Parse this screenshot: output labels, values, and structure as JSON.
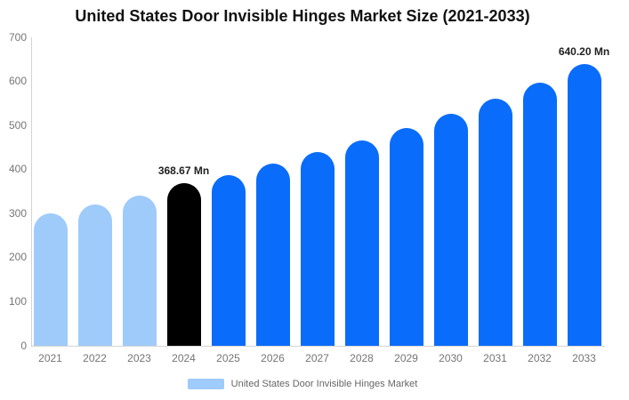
{
  "title": "United States Door Invisible Hinges Market Size (2021-2033)",
  "chart_data": {
    "type": "bar",
    "title": "United States Door Invisible Hinges Market Size (2021-2033)",
    "categories": [
      "2021",
      "2022",
      "2023",
      "2024",
      "2025",
      "2026",
      "2027",
      "2028",
      "2029",
      "2030",
      "2031",
      "2032",
      "2033"
    ],
    "values": [
      300,
      320,
      340,
      368.67,
      388,
      414,
      439,
      466,
      495,
      526,
      560,
      598,
      640.2
    ],
    "series_name": "United States Door Invisible Hinges Market",
    "xlabel": "",
    "ylabel": "",
    "ylim": [
      0,
      700
    ],
    "yticks": [
      0,
      100,
      200,
      300,
      400,
      500,
      600,
      700
    ],
    "grid": false,
    "legend_position": "bottom",
    "data_labels": [
      {
        "category": "2024",
        "text": "368.67 Mn"
      },
      {
        "category": "2033",
        "text": "640.20 Mn"
      }
    ],
    "bar_colors": {
      "past": "#9ecbfa",
      "current": "#000000",
      "forecast": "#0a6cfa"
    },
    "bar_color_by_category": {
      "2021": "past",
      "2022": "past",
      "2023": "past",
      "2024": "current",
      "2025": "forecast",
      "2026": "forecast",
      "2027": "forecast",
      "2028": "forecast",
      "2029": "forecast",
      "2030": "forecast",
      "2031": "forecast",
      "2032": "forecast",
      "2033": "forecast"
    }
  },
  "legend": {
    "label": "United States Door Invisible Hinges Market",
    "swatch_color": "#9ecbfa"
  },
  "colors": {
    "background": "#ffffff",
    "axis_line": "#d4d4d4",
    "tick_label": "#757575",
    "value_label": "#222222",
    "legend_text": "#666666"
  }
}
